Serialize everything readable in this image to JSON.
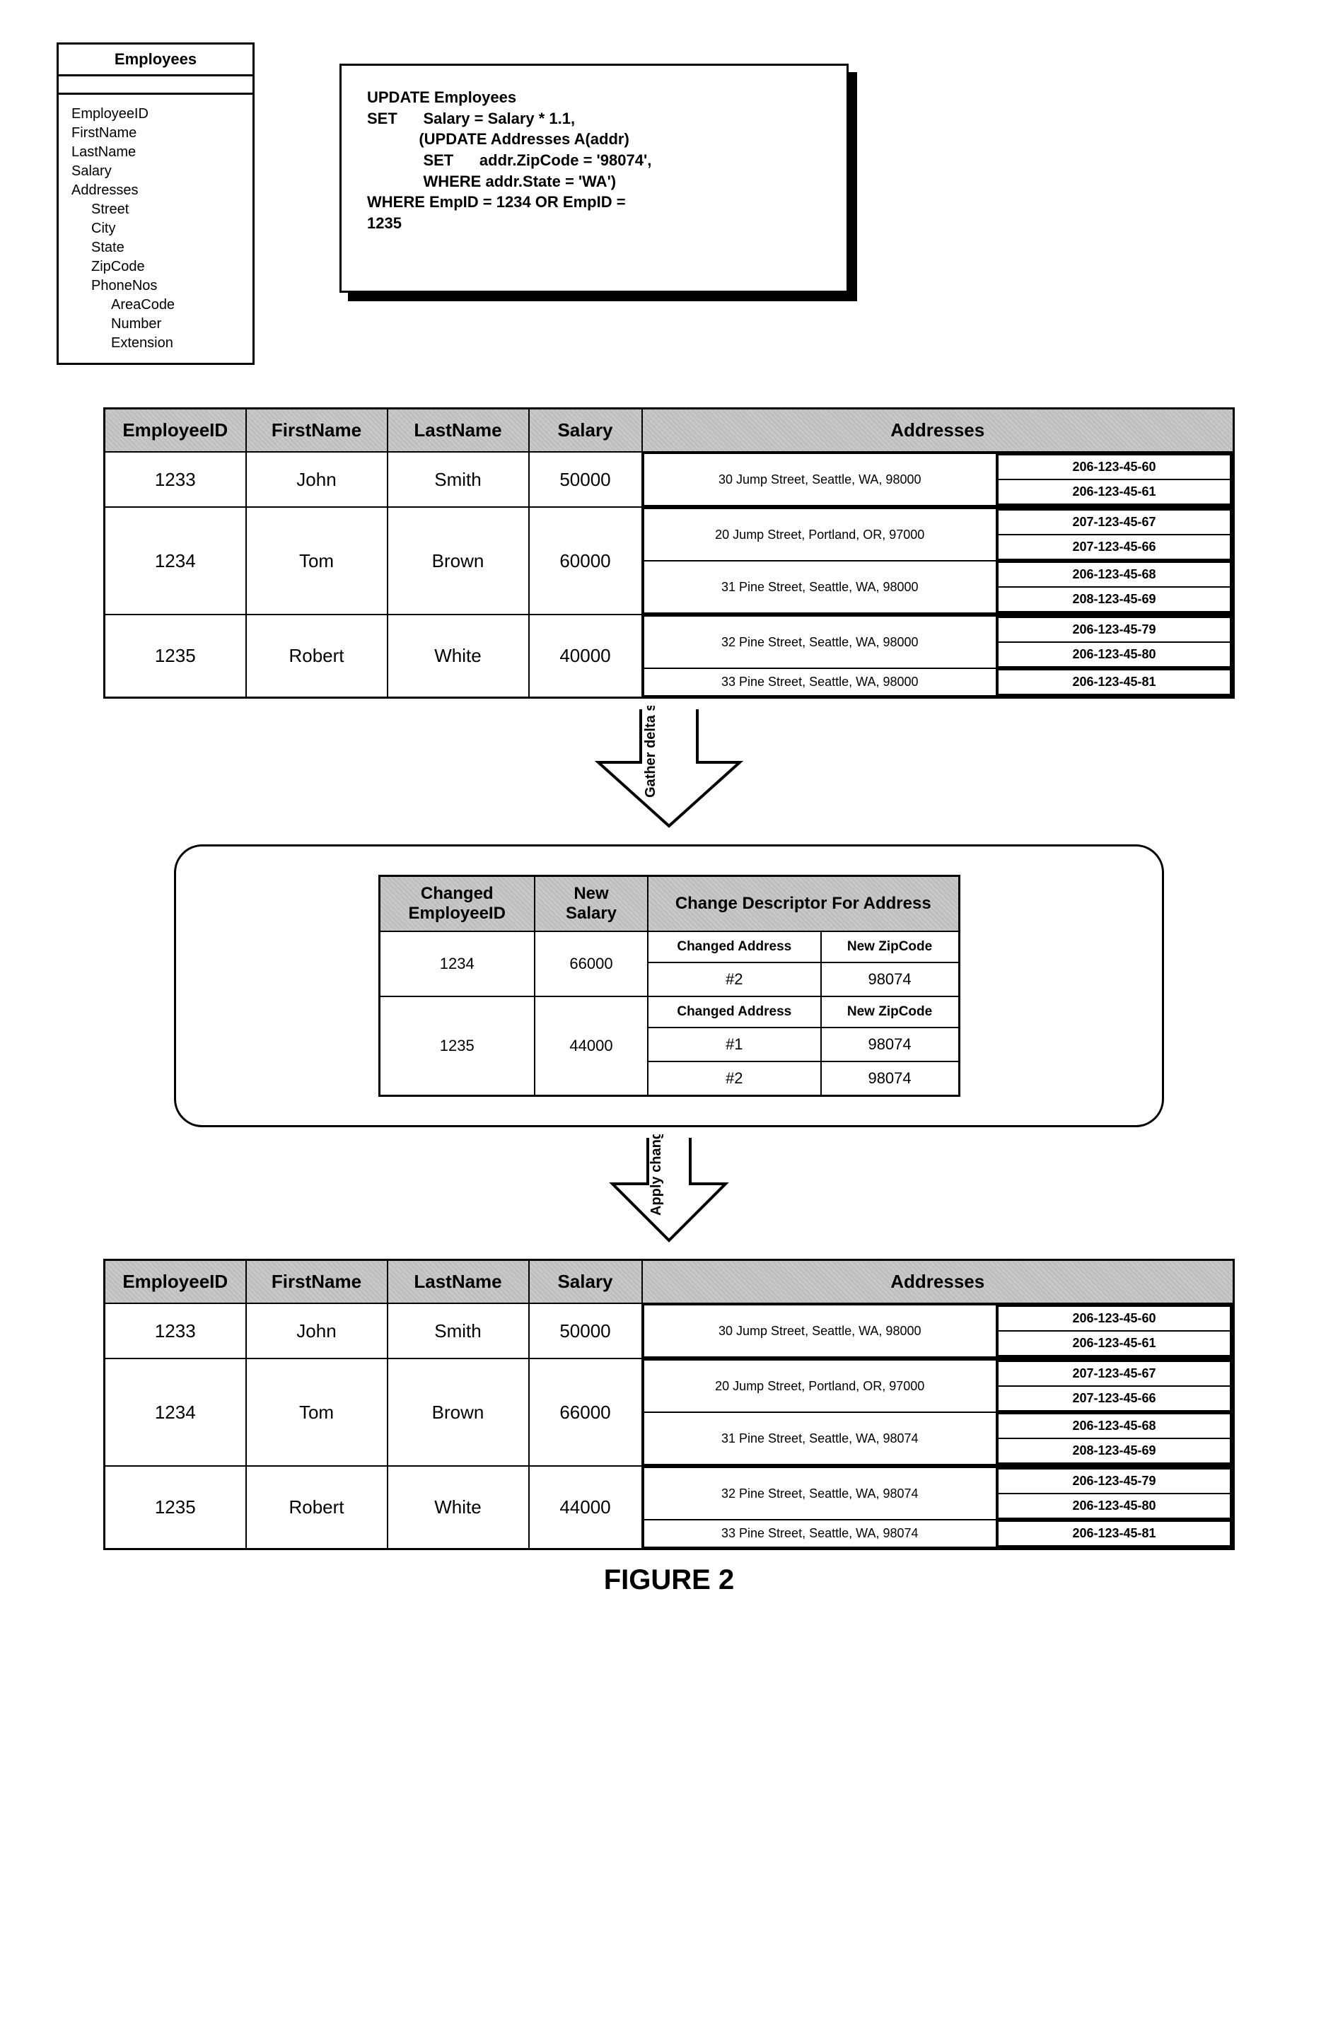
{
  "schema": {
    "title": "Employees",
    "fields": [
      "EmployeeID",
      "FirstName",
      "LastName",
      "Salary",
      "Addresses"
    ],
    "addr_fields": [
      "Street",
      "City",
      "State",
      "ZipCode",
      "PhoneNos"
    ],
    "phone_fields": [
      "AreaCode",
      "Number",
      "Extension"
    ]
  },
  "sql": {
    "l1": "UPDATE Employees",
    "l2": "SET      Salary = Salary * 1.1,",
    "l3": "            (UPDATE Addresses A(addr)",
    "l4": "             SET      addr.ZipCode = '98074',",
    "l5": "             WHERE addr.State = 'WA')",
    "l6": "WHERE EmpID = 1234 OR EmpID =",
    "l7": "1235"
  },
  "headers": {
    "emp": "EmployeeID",
    "fn": "FirstName",
    "ln": "LastName",
    "sal": "Salary",
    "addr": "Addresses"
  },
  "rows_before": [
    {
      "id": "1233",
      "fn": "John",
      "ln": "Smith",
      "sal": "50000",
      "addrs": [
        {
          "a": "30 Jump Street, Seattle, WA, 98000",
          "p": [
            "206-123-45-60",
            "206-123-45-61"
          ]
        }
      ]
    },
    {
      "id": "1234",
      "fn": "Tom",
      "ln": "Brown",
      "sal": "60000",
      "addrs": [
        {
          "a": "20 Jump Street, Portland, OR, 97000",
          "p": [
            "207-123-45-67",
            "207-123-45-66"
          ]
        },
        {
          "a": "31 Pine Street, Seattle, WA, 98000",
          "p": [
            "206-123-45-68",
            "208-123-45-69"
          ]
        }
      ]
    },
    {
      "id": "1235",
      "fn": "Robert",
      "ln": "White",
      "sal": "40000",
      "addrs": [
        {
          "a": "32 Pine Street, Seattle, WA, 98000",
          "p": [
            "206-123-45-79",
            "206-123-45-80"
          ]
        },
        {
          "a": "33 Pine Street, Seattle, WA, 98000",
          "p": [
            "206-123-45-81"
          ]
        }
      ]
    }
  ],
  "arrow1_label": "Gather delta stream",
  "delta_headers": {
    "cid": "Changed EmployeeID",
    "ns": "New Salary",
    "cd": "Change Descriptor For Address",
    "ca": "Changed Address",
    "nz": "New ZipCode"
  },
  "delta_rows": [
    {
      "id": "1234",
      "sal": "66000",
      "changes": [
        {
          "n": "#2",
          "z": "98074"
        }
      ]
    },
    {
      "id": "1235",
      "sal": "44000",
      "changes": [
        {
          "n": "#1",
          "z": "98074"
        },
        {
          "n": "#2",
          "z": "98074"
        }
      ]
    }
  ],
  "arrow2_label": "Apply changes",
  "rows_after": [
    {
      "id": "1233",
      "fn": "John",
      "ln": "Smith",
      "sal": "50000",
      "addrs": [
        {
          "a": "30 Jump Street, Seattle, WA, 98000",
          "p": [
            "206-123-45-60",
            "206-123-45-61"
          ]
        }
      ]
    },
    {
      "id": "1234",
      "fn": "Tom",
      "ln": "Brown",
      "sal": "66000",
      "addrs": [
        {
          "a": "20 Jump Street, Portland, OR, 97000",
          "p": [
            "207-123-45-67",
            "207-123-45-66"
          ]
        },
        {
          "a": "31 Pine Street, Seattle, WA, 98074",
          "p": [
            "206-123-45-68",
            "208-123-45-69"
          ]
        }
      ]
    },
    {
      "id": "1235",
      "fn": "Robert",
      "ln": "White",
      "sal": "44000",
      "addrs": [
        {
          "a": "32 Pine Street, Seattle, WA, 98074",
          "p": [
            "206-123-45-79",
            "206-123-45-80"
          ]
        },
        {
          "a": "33 Pine Street, Seattle, WA, 98074",
          "p": [
            "206-123-45-81"
          ]
        }
      ]
    }
  ],
  "figure_label": "FIGURE 2"
}
